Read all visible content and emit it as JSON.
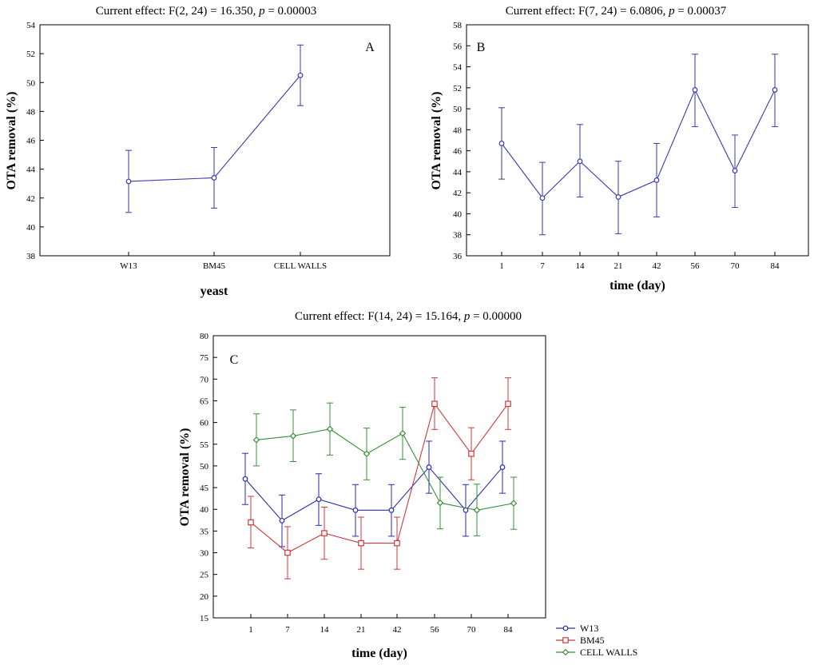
{
  "figure": {
    "colors": {
      "frame": "#000000"
    }
  },
  "chart_data": [
    {
      "type": "line",
      "panel": "A",
      "title": "Current effect: F(2, 24) = 16.350, p = 0.00003",
      "title_prefix": "Current effect: F(2, 24) = 16.350, ",
      "p_symbol": "p",
      "p_value": " = 0.00003",
      "xlabel": "yeast",
      "ylabel": "OTA removal (%)",
      "categories": [
        "W13",
        "BM45",
        "CELL WALLS"
      ],
      "ylim": [
        38,
        54
      ],
      "yticks": [
        "38",
        "40",
        "42",
        "44",
        "46",
        "48",
        "50",
        "52",
        "54"
      ],
      "series": [
        {
          "name": "OTA removal",
          "color": "#3a3aaa",
          "values": [
            43.15,
            43.4,
            50.5
          ],
          "ci_low": [
            41.0,
            41.3,
            48.4
          ],
          "ci_high": [
            45.3,
            45.5,
            52.6
          ],
          "marker": "circle"
        }
      ]
    },
    {
      "type": "line",
      "panel": "B",
      "title": "Current effect: F(7, 24) = 6.0806, p = 0.00037",
      "title_prefix": "Current effect: F(7, 24) = 6.0806, ",
      "p_symbol": "p",
      "p_value": " = 0.00037",
      "xlabel": "time (day)",
      "ylabel": "OTA removal (%)",
      "categories": [
        "1",
        "7",
        "14",
        "21",
        "42",
        "56",
        "70",
        "84"
      ],
      "ylim": [
        36,
        58
      ],
      "yticks": [
        "36",
        "38",
        "40",
        "42",
        "44",
        "46",
        "48",
        "50",
        "52",
        "54",
        "56",
        "58"
      ],
      "series": [
        {
          "name": "OTA removal",
          "color": "#3a3aaa",
          "values": [
            46.7,
            41.5,
            45.0,
            41.6,
            43.2,
            51.8,
            44.1,
            51.8
          ],
          "ci_low": [
            43.3,
            38.0,
            41.6,
            38.1,
            39.7,
            48.3,
            40.6,
            48.3
          ],
          "ci_high": [
            50.1,
            44.9,
            48.5,
            45.0,
            46.7,
            55.2,
            47.5,
            55.2
          ],
          "marker": "circle"
        }
      ]
    },
    {
      "type": "line",
      "panel": "C",
      "title": "Current effect: F(14, 24) = 15.164, p = 0.00000",
      "title_prefix": "Current effect: F(14, 24) = 15.164, ",
      "p_symbol": "p",
      "p_value": " = 0.00000",
      "xlabel": "time (day)",
      "ylabel": "OTA removal (%)",
      "categories": [
        "1",
        "7",
        "14",
        "21",
        "42",
        "56",
        "70",
        "84"
      ],
      "ylim": [
        15,
        80
      ],
      "yticks": [
        "15",
        "20",
        "25",
        "30",
        "35",
        "40",
        "45",
        "50",
        "55",
        "60",
        "65",
        "70",
        "75",
        "80"
      ],
      "legend": {
        "position": "bottom-right-outside"
      },
      "series": [
        {
          "name": "W13",
          "color": "#2a2ab0",
          "marker": "circle",
          "offset": -1,
          "values": [
            47.0,
            37.4,
            42.3,
            39.8,
            39.8,
            49.7,
            39.8,
            49.7
          ],
          "ci_low": [
            41.1,
            31.4,
            36.3,
            33.8,
            33.8,
            43.7,
            33.8,
            43.7
          ],
          "ci_high": [
            52.9,
            43.3,
            48.2,
            45.7,
            45.7,
            55.7,
            45.7,
            55.7
          ]
        },
        {
          "name": "BM45",
          "color": "#cc3a3a",
          "marker": "square",
          "offset": 0,
          "values": [
            37.0,
            30.0,
            34.5,
            32.2,
            32.2,
            64.3,
            52.8,
            64.3
          ],
          "ci_low": [
            31.1,
            24.0,
            28.5,
            26.2,
            26.2,
            58.4,
            46.8,
            58.4
          ],
          "ci_high": [
            43.0,
            36.0,
            40.5,
            38.2,
            38.2,
            70.3,
            58.8,
            70.3
          ]
        },
        {
          "name": "CELL WALLS",
          "color": "#3a8f3a",
          "marker": "diamond",
          "offset": 1,
          "values": [
            56.0,
            56.9,
            58.5,
            52.8,
            57.5,
            41.5,
            39.8,
            41.4
          ],
          "ci_low": [
            50.0,
            51.0,
            52.5,
            46.8,
            51.5,
            35.5,
            33.9,
            35.4
          ],
          "ci_high": [
            62.0,
            62.9,
            64.5,
            58.7,
            63.5,
            47.4,
            45.8,
            47.4
          ]
        }
      ]
    }
  ]
}
